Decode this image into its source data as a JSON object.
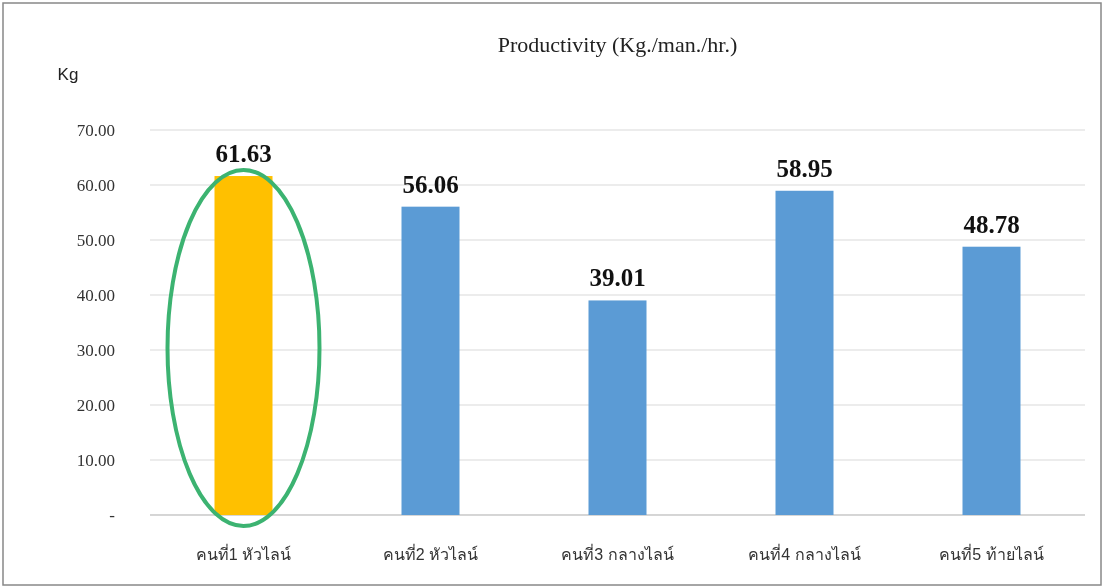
{
  "chart_data": {
    "type": "bar",
    "title": "Productivity (Kg./man./hr.)",
    "ylabel": "Kg",
    "categories": [
      "คนที่1 หัวไลน์",
      "คนที่2 หัวไลน์",
      "คนที่3 กลางไลน์",
      "คนที่4 กลางไลน์",
      "คนที่5 ท้ายไลน์"
    ],
    "values": [
      61.63,
      56.06,
      39.01,
      58.95,
      48.78
    ],
    "colors": [
      "#ffc000",
      "#5b9bd5",
      "#5b9bd5",
      "#5b9bd5",
      "#5b9bd5"
    ],
    "ylim": [
      0,
      70
    ],
    "yticks": [
      {
        "value": 0,
        "label": "-"
      },
      {
        "value": 10,
        "label": "10.00"
      },
      {
        "value": 20,
        "label": "20.00"
      },
      {
        "value": 30,
        "label": "30.00"
      },
      {
        "value": 40,
        "label": "40.00"
      },
      {
        "value": 50,
        "label": "50.00"
      },
      {
        "value": 60,
        "label": "60.00"
      },
      {
        "value": 70,
        "label": "70.00"
      }
    ],
    "grid": "y",
    "data_labels": true
  }
}
